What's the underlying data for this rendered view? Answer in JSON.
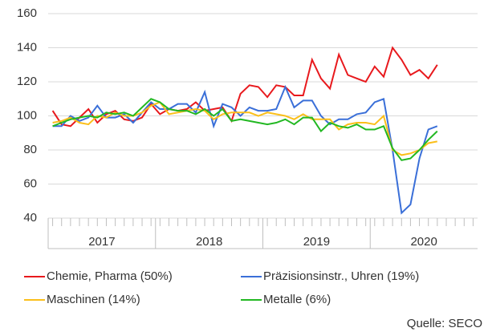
{
  "chart_data": {
    "type": "line",
    "categories": [
      null,
      null,
      null,
      null,
      null,
      null,
      null,
      null,
      null,
      null,
      null,
      null,
      null,
      null,
      null,
      null,
      null,
      null,
      null,
      null,
      null,
      null,
      null,
      null,
      null,
      null,
      null,
      null,
      null,
      null,
      null,
      null,
      null,
      null,
      null,
      null,
      null,
      null,
      null,
      null,
      null,
      null,
      null,
      null,
      null,
      null,
      null,
      null
    ],
    "year_groups": [
      {
        "label": "2017",
        "months": 12
      },
      {
        "label": "2018",
        "months": 12
      },
      {
        "label": "2019",
        "months": 12
      },
      {
        "label": "2020",
        "months": 12
      }
    ],
    "ylim": [
      40,
      160
    ],
    "yticks": [
      40,
      60,
      80,
      100,
      120,
      140,
      160
    ],
    "grid": true,
    "series": [
      {
        "name": "Chemie, Pharma (50%)",
        "color": "#e8191d",
        "values": [
          103,
          95,
          94,
          99,
          104,
          96,
          101,
          103,
          98,
          97,
          99,
          107,
          101,
          104,
          103,
          104,
          108,
          103,
          104,
          105,
          97,
          113,
          118,
          117,
          111,
          118,
          117,
          112,
          112,
          133,
          122,
          116,
          136,
          124,
          122,
          120,
          129,
          123,
          140,
          133,
          124,
          127,
          122,
          130,
          null,
          null,
          null,
          null
        ]
      },
      {
        "name": "Präzisionsinstr., Uhren (19%)",
        "color": "#3a6fd8",
        "values": [
          94,
          94,
          100,
          97,
          99,
          106,
          99,
          99,
          101,
          96,
          102,
          108,
          104,
          104,
          107,
          107,
          102,
          114,
          94,
          107,
          105,
          100,
          105,
          103,
          103,
          104,
          117,
          105,
          109,
          109,
          100,
          95,
          98,
          98,
          101,
          102,
          108,
          110,
          80,
          43,
          48,
          75,
          92,
          94,
          null,
          null,
          null,
          null
        ]
      },
      {
        "name": "Maschinen (14%)",
        "color": "#fbbf1a",
        "values": [
          96,
          97,
          99,
          96,
          95,
          100,
          99,
          102,
          100,
          100,
          102,
          106,
          108,
          101,
          102,
          103,
          104,
          103,
          98,
          101,
          102,
          102,
          102,
          100,
          102,
          101,
          100,
          98,
          101,
          98,
          98,
          98,
          92,
          95,
          96,
          96,
          95,
          100,
          80,
          77,
          78,
          80,
          84,
          85,
          null,
          null,
          null,
          null
        ]
      },
      {
        "name": "Metalle (6%)",
        "color": "#22b822",
        "values": [
          94,
          96,
          98,
          99,
          100,
          99,
          102,
          101,
          102,
          100,
          105,
          110,
          108,
          104,
          103,
          103,
          101,
          104,
          100,
          104,
          97,
          98,
          97,
          96,
          95,
          96,
          98,
          95,
          99,
          99,
          91,
          96,
          94,
          93,
          95,
          92,
          92,
          94,
          81,
          74,
          75,
          80,
          86,
          91,
          null,
          null,
          null,
          null
        ]
      }
    ],
    "source": "Quelle: SECO"
  }
}
